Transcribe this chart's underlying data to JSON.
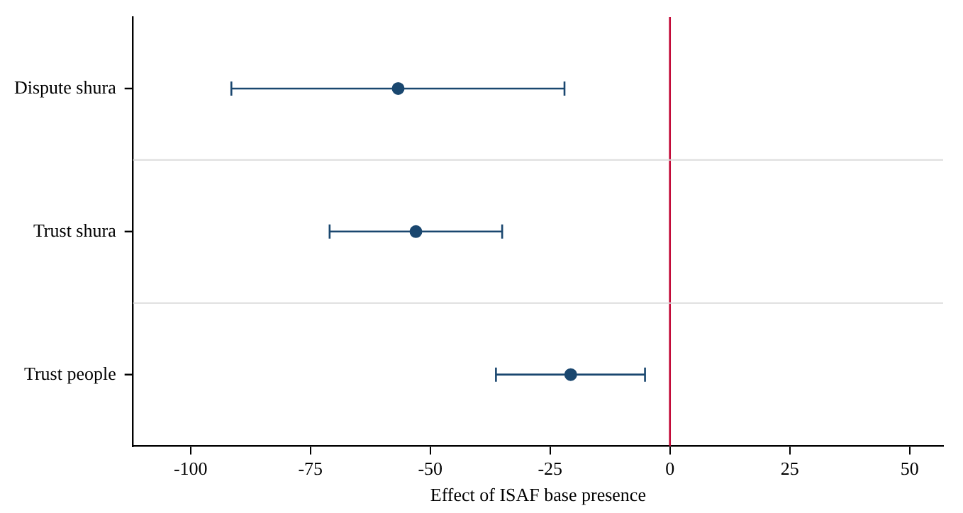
{
  "chart_data": {
    "type": "scatter",
    "orientation": "horizontal",
    "xlabel": "Effect of ISAF base presence",
    "categories": [
      "Dispute shura",
      "Trust shura",
      "Trust people"
    ],
    "color": "#1a476f",
    "values": [
      -56.7,
      -53,
      -20.7
    ],
    "errors": [
      [
        -91.5,
        -22
      ],
      [
        -71,
        -35
      ],
      [
        -36.3,
        -5.2
      ]
    ],
    "xlim": [
      -112,
      57
    ],
    "xticks": [
      -100,
      -75,
      -50,
      -25,
      0,
      25,
      50
    ],
    "ref_lines": [
      {
        "axis": "x",
        "value": 0,
        "color": "#c10534"
      }
    ],
    "grid": "y",
    "marker": "circle",
    "legend": false
  }
}
